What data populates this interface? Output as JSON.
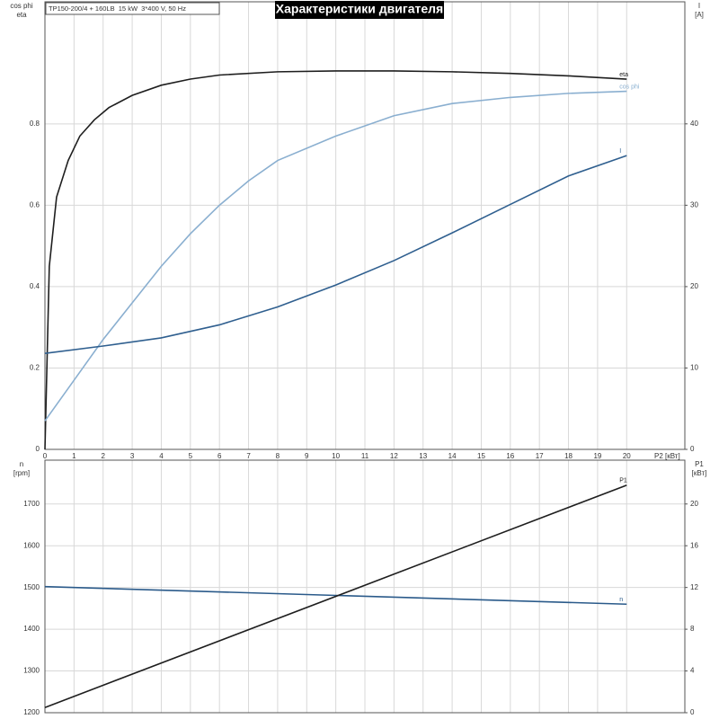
{
  "chart_data": [
    {
      "type": "line",
      "title": "Характеристики двигателя",
      "subtitle": "TP150-200/4 + 160LB  15 kW  3*400 V, 50 Hz",
      "y_label": [
        "cos phi",
        "eta"
      ],
      "y2_label": [
        "I",
        "[A]"
      ],
      "x_label": "P2 [кВт]",
      "xlim": [
        0,
        22
      ],
      "xticks": [
        0,
        1,
        2,
        3,
        4,
        5,
        6,
        7,
        8,
        9,
        10,
        11,
        12,
        13,
        14,
        15,
        16,
        17,
        18,
        19,
        20
      ],
      "xtick_labels": true,
      "ylim": [
        0,
        1.1
      ],
      "yticks": [
        0,
        0.2,
        0.4,
        0.6,
        0.8
      ],
      "y2lim": [
        0,
        55
      ],
      "y2ticks": [
        0,
        10,
        20,
        30,
        40
      ],
      "grid": true,
      "series": [
        {
          "name": "eta",
          "color": "#1e1e1e",
          "x": [
            0,
            0.15,
            0.4,
            0.8,
            1.2,
            1.7,
            2.2,
            3,
            4,
            5,
            6,
            8,
            10,
            12,
            14,
            16,
            18,
            20
          ],
          "values": [
            0,
            0.45,
            0.62,
            0.71,
            0.77,
            0.81,
            0.84,
            0.87,
            0.895,
            0.91,
            0.92,
            0.928,
            0.93,
            0.93,
            0.928,
            0.924,
            0.918,
            0.91
          ]
        },
        {
          "name": "cos phi",
          "color": "#8aafd0",
          "x": [
            0,
            1,
            2,
            3,
            4,
            5,
            6,
            7,
            8,
            10,
            12,
            14,
            16,
            18,
            20
          ],
          "values": [
            0.07,
            0.17,
            0.27,
            0.36,
            0.45,
            0.53,
            0.6,
            0.66,
            0.71,
            0.77,
            0.82,
            0.85,
            0.865,
            0.875,
            0.88
          ]
        },
        {
          "name": "I",
          "color": "#2f5f8f",
          "axis": "y2",
          "x": [
            0,
            2,
            4,
            6,
            8,
            10,
            12,
            14,
            16,
            18,
            20
          ],
          "values": [
            11.8,
            12.7,
            13.7,
            15.3,
            17.5,
            20.2,
            23.2,
            26.6,
            30.1,
            33.6,
            36.1
          ]
        }
      ]
    },
    {
      "type": "line",
      "y_label": [
        "n",
        "[rpm]"
      ],
      "y2_label": [
        "P1",
        "[кВт]"
      ],
      "xlim": [
        0,
        22
      ],
      "xticks": [
        0,
        1,
        2,
        3,
        4,
        5,
        6,
        7,
        8,
        9,
        10,
        11,
        12,
        13,
        14,
        15,
        16,
        17,
        18,
        19,
        20
      ],
      "xtick_labels": false,
      "ylim": [
        1200,
        1805
      ],
      "yticks": [
        1200,
        1300,
        1400,
        1500,
        1600,
        1700
      ],
      "y2lim": [
        0,
        24.2
      ],
      "y2ticks": [
        0,
        4,
        8,
        12,
        16,
        20
      ],
      "grid": true,
      "series": [
        {
          "name": "n",
          "color": "#2a5a8a",
          "x": [
            0,
            20
          ],
          "values": [
            1502,
            1460
          ]
        },
        {
          "name": "P1",
          "color": "#1e1e1e",
          "axis": "y2",
          "x": [
            0,
            20
          ],
          "values": [
            0.5,
            21.8
          ]
        }
      ]
    }
  ]
}
